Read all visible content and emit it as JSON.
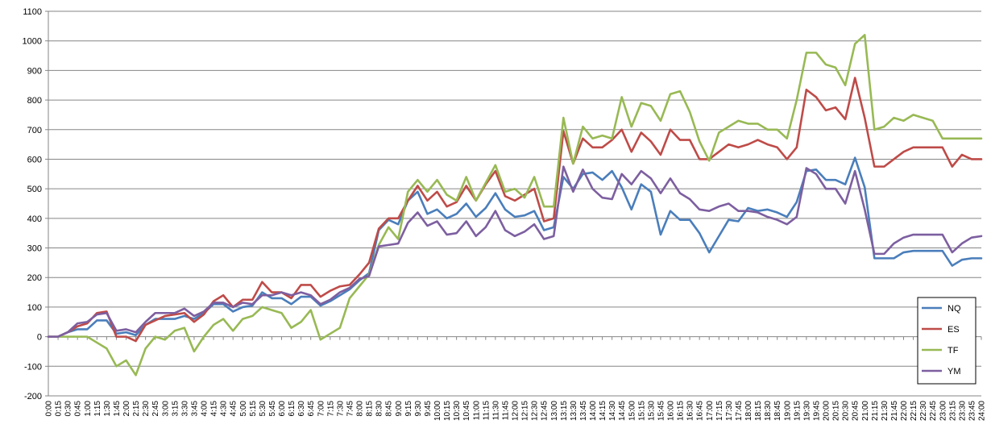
{
  "chart_data": {
    "type": "line",
    "title": "",
    "xlabel": "",
    "ylabel": "",
    "ylim": [
      -200,
      1100
    ],
    "yticks": [
      -200,
      -100,
      0,
      100,
      200,
      300,
      400,
      500,
      600,
      700,
      800,
      900,
      1000,
      1100
    ],
    "grid": "horizontal",
    "legend_position": "right",
    "x": [
      "0:00",
      "0:15",
      "0:30",
      "0:45",
      "1:00",
      "1:15",
      "1:30",
      "1:45",
      "2:00",
      "2:15",
      "2:30",
      "2:45",
      "3:00",
      "3:15",
      "3:30",
      "3:45",
      "4:00",
      "4:15",
      "4:30",
      "4:45",
      "5:00",
      "5:15",
      "5:30",
      "5:45",
      "6:00",
      "6:15",
      "6:30",
      "6:45",
      "7:00",
      "7:15",
      "7:30",
      "7:45",
      "8:00",
      "8:15",
      "8:30",
      "8:45",
      "9:00",
      "9:15",
      "9:30",
      "9:45",
      "10:00",
      "10:15",
      "10:30",
      "10:45",
      "11:00",
      "11:15",
      "11:30",
      "11:45",
      "12:00",
      "12:15",
      "12:30",
      "12:45",
      "13:00",
      "13:15",
      "13:30",
      "13:45",
      "14:00",
      "14:15",
      "14:30",
      "14:45",
      "15:00",
      "15:15",
      "15:30",
      "15:45",
      "16:00",
      "16:15",
      "16:30",
      "16:45",
      "17:00",
      "17:15",
      "17:30",
      "17:45",
      "18:00",
      "18:15",
      "18:30",
      "18:45",
      "19:00",
      "19:15",
      "19:30",
      "19:45",
      "20:00",
      "20:15",
      "20:30",
      "20:45",
      "21:00",
      "21:15",
      "21:30",
      "21:45",
      "22:00",
      "22:15",
      "22:30",
      "22:45",
      "23:00",
      "23:15",
      "23:30",
      "23:45",
      "24:00"
    ],
    "series": [
      {
        "name": "NQ",
        "color": "#4a7ebb",
        "values": [
          0,
          0,
          15,
          25,
          25,
          55,
          55,
          10,
          15,
          5,
          40,
          60,
          60,
          60,
          70,
          60,
          80,
          110,
          110,
          85,
          100,
          105,
          150,
          130,
          130,
          110,
          135,
          135,
          105,
          120,
          140,
          160,
          190,
          215,
          360,
          395,
          380,
          460,
          490,
          415,
          430,
          400,
          415,
          450,
          405,
          435,
          485,
          430,
          405,
          410,
          425,
          360,
          370,
          540,
          500,
          550,
          555,
          530,
          560,
          505,
          430,
          515,
          490,
          345,
          425,
          395,
          395,
          350,
          285,
          340,
          395,
          390,
          435,
          425,
          430,
          420,
          405,
          455,
          560,
          565,
          530,
          530,
          515,
          605,
          505,
          265,
          265,
          265,
          285,
          290,
          290,
          290,
          290,
          240,
          260,
          265,
          265
        ]
      },
      {
        "name": "ES",
        "color": "#be4b48",
        "values": [
          0,
          0,
          15,
          35,
          45,
          80,
          85,
          0,
          0,
          -15,
          40,
          55,
          70,
          75,
          80,
          50,
          75,
          120,
          140,
          100,
          125,
          125,
          185,
          150,
          150,
          130,
          175,
          175,
          135,
          155,
          170,
          175,
          210,
          250,
          365,
          400,
          400,
          460,
          510,
          460,
          490,
          440,
          455,
          510,
          460,
          515,
          560,
          475,
          460,
          480,
          500,
          390,
          400,
          695,
          585,
          670,
          640,
          640,
          665,
          700,
          625,
          690,
          660,
          615,
          700,
          665,
          665,
          600,
          600,
          625,
          650,
          640,
          650,
          665,
          650,
          640,
          600,
          640,
          835,
          810,
          765,
          775,
          735,
          875,
          740,
          575,
          575,
          600,
          625,
          640,
          640,
          640,
          640,
          575,
          615,
          600,
          600
        ]
      },
      {
        "name": "TF",
        "color": "#98b954",
        "values": [
          0,
          0,
          0,
          0,
          0,
          -20,
          -40,
          -100,
          -80,
          -130,
          -40,
          0,
          -10,
          20,
          30,
          -50,
          0,
          40,
          60,
          20,
          60,
          70,
          100,
          90,
          80,
          30,
          50,
          90,
          -10,
          10,
          30,
          130,
          170,
          210,
          310,
          370,
          330,
          490,
          530,
          490,
          530,
          480,
          460,
          540,
          460,
          520,
          580,
          490,
          500,
          470,
          540,
          440,
          440,
          740,
          585,
          710,
          670,
          680,
          670,
          810,
          710,
          790,
          780,
          730,
          820,
          830,
          760,
          660,
          595,
          690,
          710,
          730,
          720,
          720,
          700,
          700,
          670,
          800,
          960,
          960,
          920,
          910,
          850,
          990,
          1020,
          700,
          710,
          740,
          730,
          750,
          740,
          730,
          670,
          670,
          670,
          670,
          670
        ]
      },
      {
        "name": "YM",
        "color": "#7d5fa0",
        "values": [
          0,
          0,
          15,
          45,
          50,
          75,
          80,
          20,
          25,
          15,
          50,
          80,
          80,
          80,
          95,
          70,
          85,
          115,
          115,
          100,
          115,
          110,
          140,
          140,
          150,
          140,
          150,
          140,
          110,
          125,
          150,
          165,
          195,
          205,
          305,
          310,
          315,
          385,
          420,
          375,
          390,
          345,
          350,
          390,
          340,
          370,
          425,
          360,
          340,
          355,
          380,
          330,
          340,
          575,
          490,
          565,
          500,
          470,
          465,
          550,
          515,
          560,
          535,
          485,
          535,
          485,
          465,
          430,
          425,
          440,
          450,
          425,
          425,
          420,
          405,
          395,
          380,
          405,
          570,
          550,
          500,
          500,
          450,
          560,
          430,
          280,
          280,
          315,
          335,
          345,
          345,
          345,
          345,
          285,
          315,
          335,
          340
        ]
      }
    ]
  }
}
